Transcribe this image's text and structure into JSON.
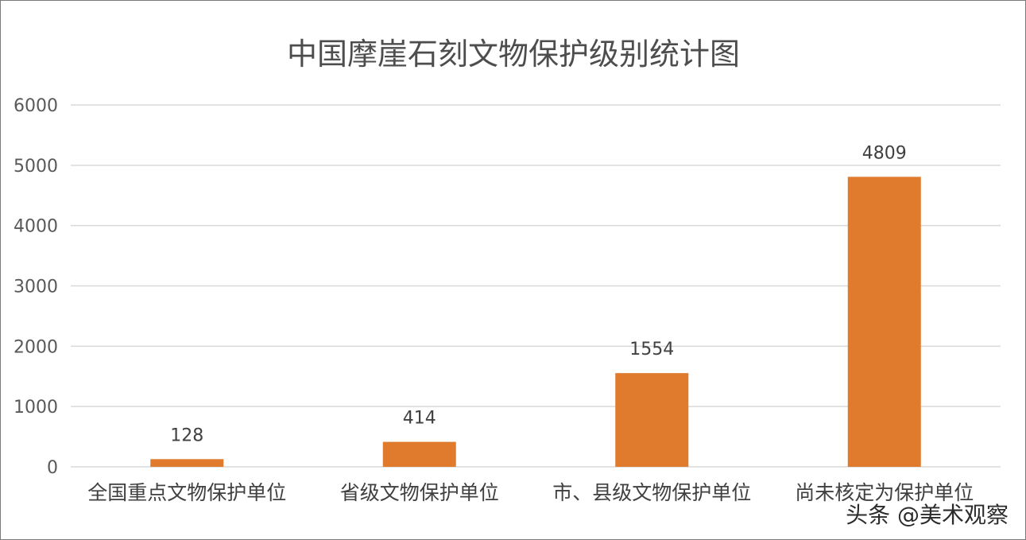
{
  "chart_data": {
    "type": "bar",
    "title": "中国摩崖石刻文物保护级别统计图",
    "xlabel": "",
    "ylabel": "",
    "categories": [
      "全国重点文物保护单位",
      "省级文物保护单位",
      "市、县级文物保护单位",
      "尚未核定为保护单位"
    ],
    "values": [
      128,
      414,
      1554,
      4809
    ],
    "data_labels": [
      "128",
      "414",
      "1554",
      "4809"
    ],
    "ylim": [
      0,
      6000
    ],
    "yticks": [
      0,
      1000,
      2000,
      3000,
      4000,
      5000,
      6000
    ],
    "ytick_labels": [
      "0",
      "1000",
      "2000",
      "3000",
      "4000",
      "5000",
      "6000"
    ],
    "grid": true,
    "legend": "none",
    "bar_color": "#e07b2e",
    "grid_color": "#d9d9d9"
  },
  "watermark": {
    "text": "头条 @美术观察"
  }
}
